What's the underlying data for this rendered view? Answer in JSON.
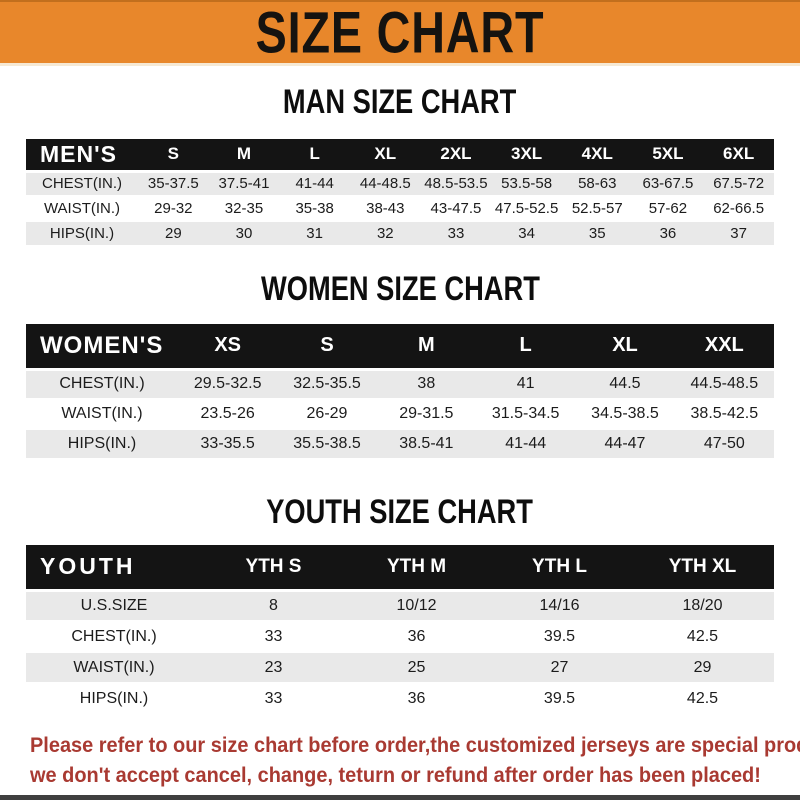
{
  "banner": {
    "title": "SIZE CHART",
    "bg_color": "#E8872B",
    "text_color": "#151310"
  },
  "sections": [
    {
      "heading": "MAN SIZE CHART",
      "table": {
        "corner_label": "MEN'S",
        "columns": [
          "S",
          "M",
          "L",
          "XL",
          "2XL",
          "3XL",
          "4XL",
          "5XL",
          "6XL"
        ],
        "rows": [
          {
            "label": "CHEST(IN.)",
            "values": [
              "35-37.5",
              "37.5-41",
              "41-44",
              "44-48.5",
              "48.5-53.5",
              "53.5-58",
              "58-63",
              "63-67.5",
              "67.5-72"
            ]
          },
          {
            "label": "WAIST(IN.)",
            "values": [
              "29-32",
              "32-35",
              "35-38",
              "38-43",
              "43-47.5",
              "47.5-52.5",
              "52.5-57",
              "57-62",
              "62-66.5"
            ]
          },
          {
            "label": "HIPS(IN.)",
            "values": [
              "29",
              "30",
              "31",
              "32",
              "33",
              "34",
              "35",
              "36",
              "37"
            ]
          }
        ]
      }
    },
    {
      "heading": "WOMEN SIZE CHART",
      "table": {
        "corner_label": "WOMEN'S",
        "columns": [
          "XS",
          "S",
          "M",
          "L",
          "XL",
          "XXL"
        ],
        "rows": [
          {
            "label": "CHEST(IN.)",
            "values": [
              "29.5-32.5",
              "32.5-35.5",
              "38",
              "41",
              "44.5",
              "44.5-48.5"
            ]
          },
          {
            "label": "WAIST(IN.)",
            "values": [
              "23.5-26",
              "26-29",
              "29-31.5",
              "31.5-34.5",
              "34.5-38.5",
              "38.5-42.5"
            ]
          },
          {
            "label": "HIPS(IN.)",
            "values": [
              "33-35.5",
              "35.5-38.5",
              "38.5-41",
              "41-44",
              "44-47",
              "47-50"
            ]
          }
        ]
      }
    },
    {
      "heading": "YOUTH SIZE CHART",
      "table": {
        "corner_label": "YOUTH",
        "columns": [
          "YTH S",
          "YTH M",
          "YTH L",
          "YTH XL"
        ],
        "rows": [
          {
            "label": "U.S.SIZE",
            "values": [
              "8",
              "10/12",
              "14/16",
              "18/20"
            ]
          },
          {
            "label": "CHEST(IN.)",
            "values": [
              "33",
              "36",
              "39.5",
              "42.5"
            ]
          },
          {
            "label": "WAIST(IN.)",
            "values": [
              "23",
              "25",
              "27",
              "29"
            ]
          },
          {
            "label": "HIPS(IN.)",
            "values": [
              "33",
              "36",
              "39.5",
              "42.5"
            ]
          }
        ]
      }
    }
  ],
  "footer": {
    "line1": "Please refer to our size chart before order,the customized jerseys are special products,",
    "line2": "we don't accept cancel, change, teturn or refund after order has been placed!",
    "text_color": "#A93A32"
  }
}
